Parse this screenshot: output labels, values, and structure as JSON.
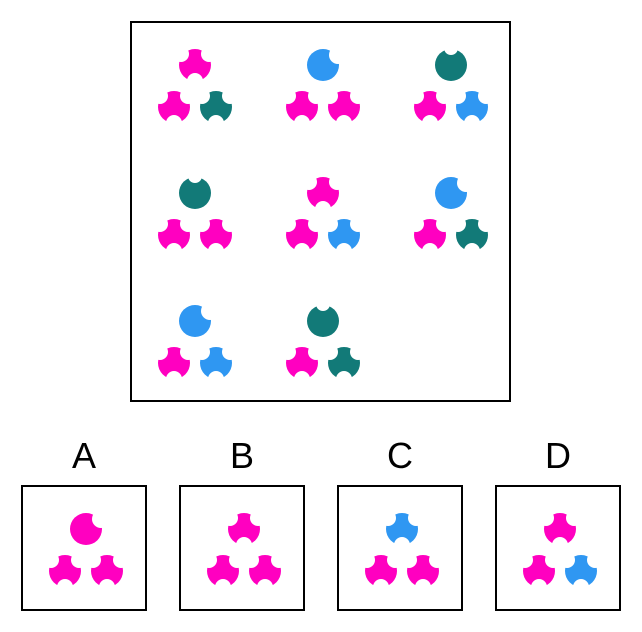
{
  "colors": {
    "magenta": "#ff00c0",
    "blue": "#2f97f2",
    "teal": "#127a78"
  },
  "matrix": [
    {
      "top": {
        "shape": "trefoil",
        "color": "magenta"
      },
      "left": "magenta",
      "right": "teal"
    },
    {
      "top": {
        "shape": "pacman",
        "color": "blue"
      },
      "left": "magenta",
      "right": "magenta"
    },
    {
      "top": {
        "shape": "notched",
        "color": "teal"
      },
      "left": "magenta",
      "right": "blue"
    },
    {
      "top": {
        "shape": "notched",
        "color": "teal"
      },
      "left": "magenta",
      "right": "magenta"
    },
    {
      "top": {
        "shape": "trefoil",
        "color": "magenta"
      },
      "left": "magenta",
      "right": "blue"
    },
    {
      "top": {
        "shape": "pacman",
        "color": "blue"
      },
      "left": "magenta",
      "right": "teal"
    },
    {
      "top": {
        "shape": "pacman",
        "color": "blue"
      },
      "left": "magenta",
      "right": "blue"
    },
    {
      "top": {
        "shape": "notched",
        "color": "teal"
      },
      "left": "magenta",
      "right": "teal"
    },
    null
  ],
  "options": [
    {
      "label": "A",
      "top": {
        "shape": "pacman",
        "color": "magenta"
      },
      "left": "magenta",
      "right": "magenta"
    },
    {
      "label": "B",
      "top": {
        "shape": "trefoil",
        "color": "magenta"
      },
      "left": "magenta",
      "right": "magenta"
    },
    {
      "label": "C",
      "top": {
        "shape": "trefoil",
        "color": "blue"
      },
      "left": "magenta",
      "right": "magenta"
    },
    {
      "label": "D",
      "top": {
        "shape": "trefoil",
        "color": "magenta"
      },
      "left": "magenta",
      "right": "blue"
    }
  ]
}
